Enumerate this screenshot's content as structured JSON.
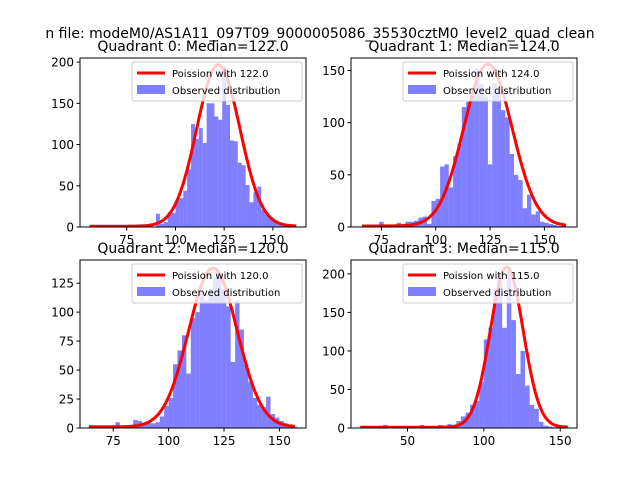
{
  "chart_data": {
    "type": "bar",
    "suptitle": "n file: modeM0/AS1A11_097T09_9000005086_35530cztM0_level2_quad_clean",
    "bar_color": "#0000ff",
    "bar_alpha": 0.5,
    "curve_color": "#ff0000",
    "panels": [
      {
        "title": "Quadrant 0: Median=122.0",
        "median": 122.0,
        "xlim": [
          51,
          167
        ],
        "ylim": [
          0,
          205
        ],
        "xticks": [
          75,
          100,
          125,
          150
        ],
        "yticks": [
          0,
          50,
          100,
          150,
          200
        ],
        "legend": {
          "location": "upper right",
          "curve_label": "Poission with 122.0",
          "bar_label": "Observed distribution"
        },
        "bins_start": 56,
        "bin_width": 2,
        "counts": [
          1,
          0,
          1,
          0,
          0,
          0,
          2,
          0,
          2,
          0,
          3,
          0,
          1,
          0,
          0,
          0,
          0,
          16,
          4,
          6,
          18,
          17,
          33,
          35,
          44,
          70,
          125,
          107,
          120,
          102,
          150,
          150,
          134,
          130,
          195,
          148,
          105,
          104,
          78,
          75,
          51,
          30,
          42,
          49,
          21,
          15,
          12,
          8,
          5,
          3,
          2,
          1,
          1
        ],
        "poisson_peak": 196,
        "poisson_range": [
          56,
          162
        ]
      },
      {
        "title": "Quadrant 1: Median=124.0",
        "median": 124.0,
        "xlim": [
          61,
          165
        ],
        "ylim": [
          0,
          162
        ],
        "xticks": [
          75,
          100,
          125,
          150
        ],
        "yticks": [
          0,
          50,
          100,
          150
        ],
        "legend": {
          "location": "upper right",
          "curve_label": "Poission with 124.0",
          "bar_label": "Observed distribution"
        },
        "bins_start": 66,
        "bin_width": 2,
        "counts": [
          0,
          0,
          0,
          0,
          5,
          0,
          2,
          2,
          4,
          3,
          5,
          5,
          6,
          9,
          10,
          3,
          25,
          27,
          58,
          60,
          38,
          68,
          80,
          115,
          120,
          125,
          152,
          137,
          125,
          60,
          138,
          130,
          112,
          105,
          70,
          50,
          45,
          18,
          31,
          12,
          15,
          5,
          4,
          3,
          2,
          1,
          1
        ],
        "poisson_peak": 155,
        "poisson_range": [
          66,
          160
        ]
      },
      {
        "title": "Quadrant 2: Median=120.0",
        "median": 120.0,
        "xlim": [
          60,
          162
        ],
        "ylim": [
          0,
          145
        ],
        "xticks": [
          75,
          100,
          125,
          150
        ],
        "yticks": [
          0,
          25,
          50,
          75,
          100,
          125
        ],
        "legend": {
          "location": "upper right",
          "curve_label": "Poission with 120.0",
          "bar_label": "Observed distribution"
        },
        "bins_start": 64,
        "bin_width": 2,
        "counts": [
          2,
          0,
          0,
          0,
          0,
          0,
          5,
          0,
          0,
          0,
          7,
          6,
          3,
          6,
          4,
          5,
          10,
          19,
          26,
          55,
          67,
          80,
          47,
          95,
          100,
          118,
          110,
          120,
          130,
          135,
          120,
          105,
          57,
          110,
          85,
          55,
          40,
          26,
          20,
          18,
          27,
          12,
          9,
          6,
          4,
          3,
          1
        ],
        "poisson_peak": 137,
        "poisson_range": [
          64,
          157
        ]
      },
      {
        "title": "Quadrant 3: Median=115.0",
        "median": 115.0,
        "xlim": [
          13,
          161
        ],
        "ylim": [
          0,
          218
        ],
        "xticks": [
          50,
          100,
          150
        ],
        "yticks": [
          0,
          50,
          100,
          150,
          200
        ],
        "legend": {
          "location": "upper right",
          "curve_label": "Poission with 115.0",
          "bar_label": "Observed distribution"
        },
        "bins_start": 19,
        "bin_width": 3,
        "counts": [
          0,
          0,
          0,
          0,
          0,
          4,
          0,
          0,
          0,
          0,
          0,
          0,
          0,
          4,
          0,
          2,
          0,
          4,
          2,
          5,
          4,
          9,
          15,
          20,
          30,
          35,
          60,
          115,
          130,
          180,
          202,
          130,
          208,
          140,
          70,
          100,
          55,
          30,
          25,
          8,
          3,
          2,
          1,
          1,
          1,
          0
        ],
        "poisson_peak": 208,
        "poisson_range": [
          19,
          155
        ]
      }
    ]
  }
}
